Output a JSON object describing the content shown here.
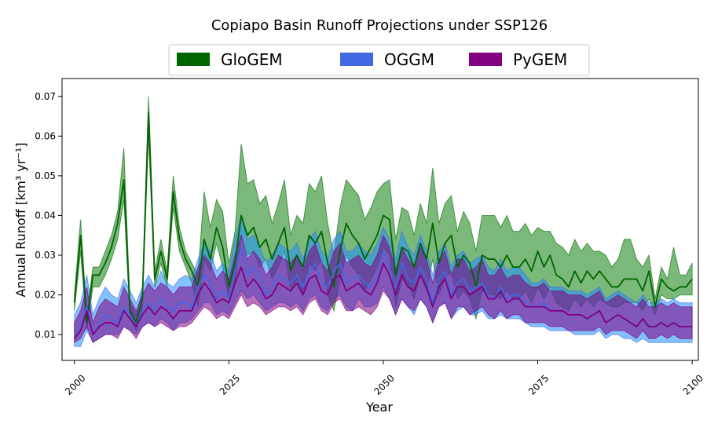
{
  "chart_data": {
    "type": "area",
    "title": "Copiapo Basin Runoff Projections under SSP126",
    "xlabel": "Year",
    "ylabel": "Annual Runoff [km³ yr⁻¹]",
    "xlim": [
      1998,
      2101
    ],
    "ylim": [
      0.0035,
      0.0745
    ],
    "xticks": [
      2000,
      2025,
      2050,
      2075,
      2100
    ],
    "yticks": [
      0.01,
      0.02,
      0.03,
      0.04,
      0.05,
      0.06,
      0.07
    ],
    "ytick_labels": [
      "0.01",
      "0.02",
      "0.03",
      "0.04",
      "0.05",
      "0.06",
      "0.07"
    ],
    "x_start": 2000,
    "legend_position": "top-center",
    "grid": false,
    "series": [
      {
        "name": "GloGEM",
        "color": "#006400",
        "fill": "#228b22",
        "fill_opacity": 0.6,
        "mean": [
          0.018,
          0.035,
          0.013,
          0.025,
          0.025,
          0.028,
          0.032,
          0.038,
          0.049,
          0.016,
          0.013,
          0.019,
          0.066,
          0.024,
          0.031,
          0.024,
          0.046,
          0.034,
          0.029,
          0.026,
          0.022,
          0.034,
          0.029,
          0.037,
          0.032,
          0.022,
          0.028,
          0.04,
          0.035,
          0.037,
          0.032,
          0.034,
          0.029,
          0.033,
          0.037,
          0.026,
          0.03,
          0.027,
          0.035,
          0.033,
          0.036,
          0.028,
          0.022,
          0.031,
          0.038,
          0.035,
          0.033,
          0.029,
          0.032,
          0.035,
          0.04,
          0.039,
          0.025,
          0.032,
          0.031,
          0.027,
          0.033,
          0.029,
          0.038,
          0.028,
          0.033,
          0.035,
          0.027,
          0.03,
          0.028,
          0.022,
          0.03,
          0.029,
          0.029,
          0.027,
          0.03,
          0.027,
          0.027,
          0.029,
          0.026,
          0.031,
          0.027,
          0.03,
          0.025,
          0.024,
          0.022,
          0.026,
          0.023,
          0.026,
          0.024,
          0.026,
          0.024,
          0.022,
          0.022,
          0.024,
          0.024,
          0.024,
          0.021,
          0.026,
          0.017,
          0.024,
          0.022,
          0.021,
          0.022,
          0.022,
          0.024
        ],
        "lower": [
          0.016,
          0.031,
          0.011,
          0.022,
          0.022,
          0.025,
          0.029,
          0.034,
          0.044,
          0.014,
          0.011,
          0.017,
          0.06,
          0.022,
          0.028,
          0.022,
          0.042,
          0.031,
          0.027,
          0.023,
          0.017,
          0.029,
          0.026,
          0.033,
          0.027,
          0.019,
          0.023,
          0.035,
          0.03,
          0.031,
          0.027,
          0.029,
          0.024,
          0.027,
          0.031,
          0.021,
          0.024,
          0.02,
          0.028,
          0.026,
          0.029,
          0.02,
          0.016,
          0.024,
          0.03,
          0.027,
          0.025,
          0.021,
          0.024,
          0.027,
          0.032,
          0.03,
          0.017,
          0.024,
          0.023,
          0.019,
          0.025,
          0.021,
          0.029,
          0.02,
          0.024,
          0.026,
          0.019,
          0.021,
          0.019,
          0.014,
          0.021,
          0.02,
          0.02,
          0.019,
          0.021,
          0.019,
          0.019,
          0.021,
          0.018,
          0.022,
          0.019,
          0.022,
          0.018,
          0.017,
          0.016,
          0.019,
          0.017,
          0.019,
          0.017,
          0.019,
          0.018,
          0.017,
          0.017,
          0.018,
          0.018,
          0.018,
          0.016,
          0.019,
          0.015,
          0.02,
          0.019,
          0.019,
          0.02,
          0.02,
          0.02
        ],
        "upper": [
          0.02,
          0.039,
          0.015,
          0.027,
          0.027,
          0.031,
          0.035,
          0.041,
          0.057,
          0.018,
          0.015,
          0.021,
          0.07,
          0.026,
          0.034,
          0.026,
          0.05,
          0.037,
          0.031,
          0.028,
          0.025,
          0.046,
          0.037,
          0.044,
          0.041,
          0.028,
          0.036,
          0.058,
          0.048,
          0.049,
          0.043,
          0.045,
          0.038,
          0.043,
          0.049,
          0.035,
          0.04,
          0.038,
          0.048,
          0.046,
          0.05,
          0.038,
          0.03,
          0.042,
          0.049,
          0.047,
          0.045,
          0.039,
          0.042,
          0.046,
          0.048,
          0.049,
          0.034,
          0.042,
          0.041,
          0.035,
          0.043,
          0.038,
          0.052,
          0.038,
          0.043,
          0.045,
          0.036,
          0.041,
          0.038,
          0.031,
          0.04,
          0.04,
          0.04,
          0.037,
          0.04,
          0.036,
          0.036,
          0.038,
          0.035,
          0.037,
          0.036,
          0.036,
          0.033,
          0.032,
          0.03,
          0.034,
          0.031,
          0.033,
          0.031,
          0.031,
          0.03,
          0.027,
          0.029,
          0.034,
          0.034,
          0.029,
          0.027,
          0.03,
          0.019,
          0.027,
          0.024,
          0.032,
          0.025,
          0.025,
          0.028
        ]
      },
      {
        "name": "OGGM",
        "color": "#4169e1",
        "fill": "#1e90ff",
        "fill_opacity": 0.55,
        "mean": [
          0.01,
          0.012,
          0.017,
          0.01,
          0.013,
          0.015,
          0.014,
          0.013,
          0.017,
          0.015,
          0.012,
          0.016,
          0.018,
          0.016,
          0.019,
          0.017,
          0.016,
          0.018,
          0.018,
          0.017,
          0.022,
          0.025,
          0.023,
          0.019,
          0.021,
          0.019,
          0.026,
          0.032,
          0.025,
          0.027,
          0.024,
          0.02,
          0.022,
          0.025,
          0.024,
          0.023,
          0.025,
          0.022,
          0.026,
          0.028,
          0.023,
          0.022,
          0.026,
          0.028,
          0.023,
          0.024,
          0.025,
          0.023,
          0.022,
          0.025,
          0.031,
          0.027,
          0.022,
          0.028,
          0.024,
          0.023,
          0.027,
          0.024,
          0.018,
          0.024,
          0.026,
          0.02,
          0.023,
          0.024,
          0.021,
          0.022,
          0.023,
          0.02,
          0.019,
          0.022,
          0.019,
          0.02,
          0.02,
          0.018,
          0.017,
          0.017,
          0.018,
          0.016,
          0.016,
          0.016,
          0.015,
          0.015,
          0.015,
          0.014,
          0.015,
          0.016,
          0.013,
          0.014,
          0.015,
          0.014,
          0.013,
          0.012,
          0.014,
          0.012,
          0.012,
          0.013,
          0.012,
          0.013,
          0.012,
          0.012,
          0.012
        ],
        "lower": [
          0.007,
          0.007,
          0.011,
          0.008,
          0.009,
          0.01,
          0.01,
          0.01,
          0.012,
          0.011,
          0.01,
          0.012,
          0.013,
          0.012,
          0.014,
          0.013,
          0.011,
          0.013,
          0.013,
          0.014,
          0.016,
          0.018,
          0.018,
          0.015,
          0.016,
          0.015,
          0.018,
          0.021,
          0.019,
          0.02,
          0.018,
          0.016,
          0.017,
          0.018,
          0.018,
          0.017,
          0.018,
          0.016,
          0.019,
          0.02,
          0.017,
          0.016,
          0.019,
          0.02,
          0.017,
          0.016,
          0.019,
          0.017,
          0.017,
          0.018,
          0.022,
          0.019,
          0.015,
          0.019,
          0.017,
          0.015,
          0.019,
          0.017,
          0.013,
          0.017,
          0.018,
          0.014,
          0.016,
          0.017,
          0.015,
          0.015,
          0.016,
          0.014,
          0.014,
          0.015,
          0.014,
          0.014,
          0.014,
          0.013,
          0.012,
          0.012,
          0.012,
          0.011,
          0.011,
          0.011,
          0.011,
          0.01,
          0.01,
          0.01,
          0.01,
          0.011,
          0.009,
          0.01,
          0.01,
          0.009,
          0.009,
          0.008,
          0.009,
          0.008,
          0.008,
          0.008,
          0.008,
          0.008,
          0.008,
          0.008,
          0.008
        ],
        "upper": [
          0.015,
          0.018,
          0.025,
          0.015,
          0.019,
          0.022,
          0.02,
          0.019,
          0.024,
          0.021,
          0.018,
          0.022,
          0.025,
          0.022,
          0.026,
          0.023,
          0.022,
          0.024,
          0.025,
          0.024,
          0.029,
          0.033,
          0.031,
          0.026,
          0.028,
          0.026,
          0.034,
          0.04,
          0.034,
          0.035,
          0.032,
          0.028,
          0.03,
          0.033,
          0.032,
          0.031,
          0.033,
          0.029,
          0.034,
          0.036,
          0.031,
          0.029,
          0.034,
          0.036,
          0.031,
          0.031,
          0.033,
          0.031,
          0.03,
          0.033,
          0.037,
          0.034,
          0.029,
          0.036,
          0.032,
          0.03,
          0.035,
          0.031,
          0.025,
          0.031,
          0.033,
          0.027,
          0.03,
          0.031,
          0.028,
          0.029,
          0.03,
          0.027,
          0.026,
          0.029,
          0.026,
          0.027,
          0.027,
          0.025,
          0.023,
          0.023,
          0.024,
          0.022,
          0.022,
          0.022,
          0.021,
          0.021,
          0.021,
          0.02,
          0.021,
          0.022,
          0.019,
          0.02,
          0.021,
          0.02,
          0.019,
          0.018,
          0.02,
          0.018,
          0.018,
          0.019,
          0.018,
          0.019,
          0.018,
          0.018,
          0.018
        ]
      },
      {
        "name": "PyGEM",
        "color": "#800080",
        "fill": "#800080",
        "fill_opacity": 0.55,
        "mean": [
          0.009,
          0.011,
          0.016,
          0.01,
          0.012,
          0.013,
          0.013,
          0.012,
          0.016,
          0.014,
          0.012,
          0.015,
          0.017,
          0.015,
          0.017,
          0.016,
          0.014,
          0.016,
          0.016,
          0.016,
          0.02,
          0.023,
          0.021,
          0.018,
          0.019,
          0.018,
          0.023,
          0.027,
          0.022,
          0.024,
          0.022,
          0.019,
          0.02,
          0.023,
          0.022,
          0.021,
          0.023,
          0.02,
          0.024,
          0.025,
          0.021,
          0.02,
          0.024,
          0.025,
          0.021,
          0.022,
          0.023,
          0.021,
          0.02,
          0.023,
          0.028,
          0.025,
          0.02,
          0.025,
          0.022,
          0.021,
          0.025,
          0.022,
          0.017,
          0.022,
          0.024,
          0.019,
          0.022,
          0.022,
          0.02,
          0.021,
          0.022,
          0.019,
          0.019,
          0.021,
          0.018,
          0.019,
          0.019,
          0.017,
          0.017,
          0.017,
          0.017,
          0.016,
          0.016,
          0.016,
          0.015,
          0.015,
          0.015,
          0.014,
          0.015,
          0.016,
          0.013,
          0.014,
          0.015,
          0.014,
          0.013,
          0.012,
          0.014,
          0.012,
          0.012,
          0.013,
          0.012,
          0.013,
          0.012,
          0.012,
          0.012
        ],
        "lower": [
          0.008,
          0.009,
          0.012,
          0.008,
          0.009,
          0.01,
          0.01,
          0.009,
          0.012,
          0.011,
          0.009,
          0.012,
          0.013,
          0.012,
          0.013,
          0.012,
          0.011,
          0.012,
          0.012,
          0.013,
          0.015,
          0.017,
          0.016,
          0.014,
          0.015,
          0.014,
          0.017,
          0.02,
          0.017,
          0.018,
          0.017,
          0.015,
          0.016,
          0.017,
          0.017,
          0.016,
          0.017,
          0.015,
          0.018,
          0.019,
          0.016,
          0.015,
          0.018,
          0.019,
          0.016,
          0.016,
          0.017,
          0.016,
          0.015,
          0.017,
          0.021,
          0.019,
          0.015,
          0.019,
          0.017,
          0.016,
          0.019,
          0.017,
          0.013,
          0.017,
          0.018,
          0.014,
          0.017,
          0.017,
          0.015,
          0.016,
          0.017,
          0.015,
          0.014,
          0.016,
          0.014,
          0.015,
          0.015,
          0.013,
          0.013,
          0.013,
          0.013,
          0.012,
          0.012,
          0.012,
          0.011,
          0.011,
          0.011,
          0.011,
          0.011,
          0.012,
          0.01,
          0.011,
          0.011,
          0.011,
          0.01,
          0.009,
          0.011,
          0.009,
          0.009,
          0.01,
          0.009,
          0.01,
          0.009,
          0.009,
          0.009
        ],
        "upper": [
          0.013,
          0.016,
          0.022,
          0.013,
          0.017,
          0.019,
          0.018,
          0.017,
          0.022,
          0.019,
          0.016,
          0.02,
          0.023,
          0.021,
          0.023,
          0.022,
          0.02,
          0.022,
          0.022,
          0.022,
          0.027,
          0.03,
          0.028,
          0.024,
          0.026,
          0.024,
          0.03,
          0.035,
          0.029,
          0.031,
          0.029,
          0.025,
          0.027,
          0.03,
          0.029,
          0.028,
          0.03,
          0.026,
          0.031,
          0.033,
          0.028,
          0.026,
          0.031,
          0.033,
          0.028,
          0.029,
          0.03,
          0.028,
          0.027,
          0.03,
          0.035,
          0.032,
          0.026,
          0.032,
          0.029,
          0.027,
          0.032,
          0.029,
          0.023,
          0.029,
          0.031,
          0.025,
          0.029,
          0.029,
          0.026,
          0.027,
          0.029,
          0.025,
          0.025,
          0.027,
          0.024,
          0.025,
          0.025,
          0.023,
          0.022,
          0.022,
          0.023,
          0.021,
          0.021,
          0.021,
          0.02,
          0.02,
          0.02,
          0.019,
          0.02,
          0.021,
          0.018,
          0.019,
          0.02,
          0.019,
          0.018,
          0.017,
          0.019,
          0.017,
          0.017,
          0.018,
          0.017,
          0.018,
          0.017,
          0.017,
          0.017
        ]
      }
    ]
  }
}
